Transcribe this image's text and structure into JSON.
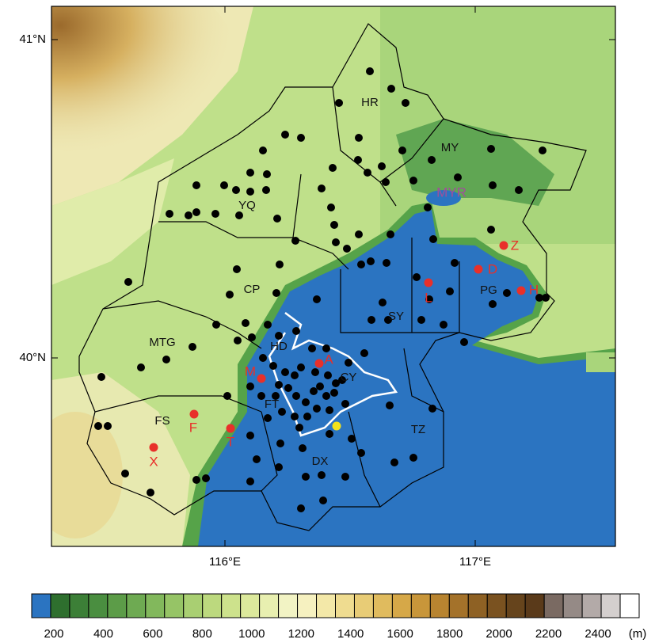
{
  "map": {
    "x_ticks": [
      "116°E",
      "117°E"
    ],
    "y_ticks": [
      "41°N",
      "40°N"
    ],
    "districts": [
      "HR",
      "MY",
      "MYR",
      "YQ",
      "CP",
      "SY",
      "PG",
      "HD",
      "CY",
      "MTG",
      "FS",
      "FT",
      "DX",
      "TZ"
    ],
    "stations": [
      "Z",
      "D",
      "L",
      "H",
      "A",
      "M",
      "F",
      "T",
      "X"
    ]
  },
  "colorbar": {
    "ticks": [
      200,
      400,
      600,
      800,
      1000,
      1200,
      1400,
      1600,
      1800,
      2000,
      2200,
      2400
    ],
    "unit": "(m)"
  }
}
